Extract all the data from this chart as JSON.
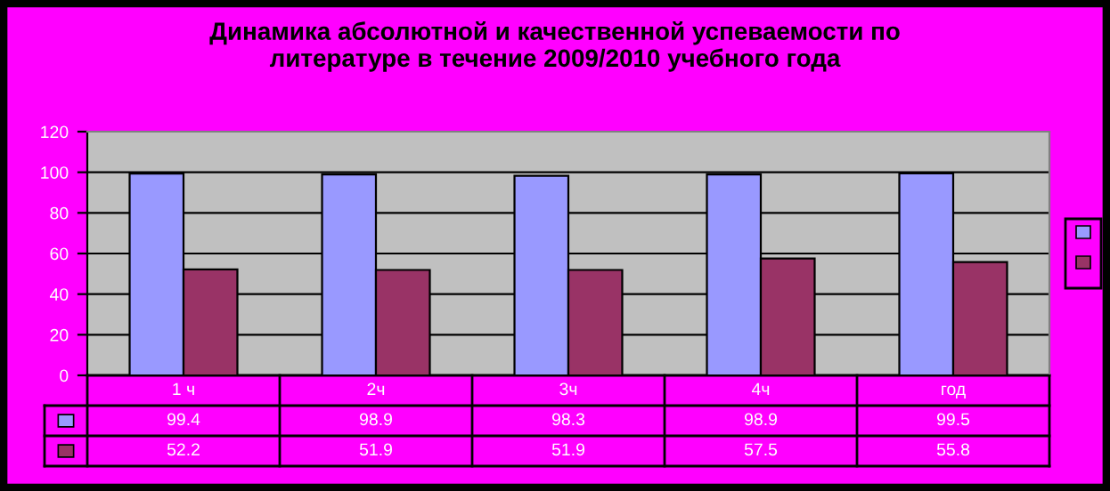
{
  "chart_data": {
    "type": "bar",
    "title": "Динамика абсолютной и качественной успеваемости по\nлитературе в течение 2009/2010 учебного года",
    "categories": [
      "1 ч",
      "2ч",
      "3ч",
      "4ч",
      "год"
    ],
    "series": [
      {
        "color": "#9999ff",
        "values": [
          99.4,
          98.9,
          98.3,
          98.9,
          99.5
        ]
      },
      {
        "color": "#993366",
        "values": [
          52.2,
          51.9,
          51.9,
          57.5,
          55.8
        ]
      }
    ],
    "ylim": [
      0,
      120
    ],
    "yticks": [
      0,
      20,
      40,
      60,
      80,
      100,
      120
    ],
    "grid": "y",
    "data_labels": true
  }
}
